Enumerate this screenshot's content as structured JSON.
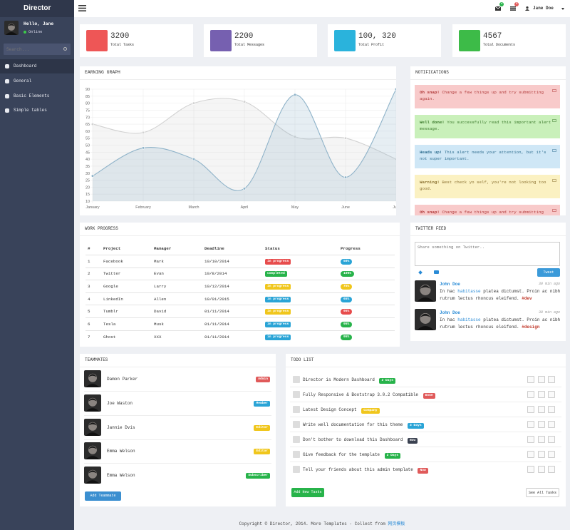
{
  "header": {
    "brand": "Director",
    "mail_count": "4",
    "task_count": "3",
    "user": "Jane Doe"
  },
  "sidebar": {
    "greeting": "Hello, Jane",
    "status": "Online",
    "search_placeholder": "Search...",
    "menu": [
      "Dashboard",
      "General",
      "Basic Elements",
      "Simple tables"
    ]
  },
  "stats": [
    {
      "value": "3200",
      "label": "Total Tasks",
      "color": "#ee5656"
    },
    {
      "value": "2200",
      "label": "Total Messages",
      "color": "#7660b0"
    },
    {
      "value": "100, 320",
      "label": "Total Profit",
      "color": "#2ab3dc"
    },
    {
      "value": "4567",
      "label": "Total Documents",
      "color": "#3dbb48"
    }
  ],
  "chart_data": {
    "type": "area",
    "title": "EARNING GRAPH",
    "categories": [
      "January",
      "February",
      "March",
      "April",
      "May",
      "June",
      "July"
    ],
    "series": [
      {
        "color": "#d2d2d2",
        "values": [
          65,
          59,
          80,
          81,
          56,
          55,
          40
        ]
      },
      {
        "color": "#8fb3c9",
        "values": [
          28,
          48,
          40,
          19,
          86,
          27,
          90
        ]
      }
    ],
    "ylim": [
      10,
      90
    ],
    "yticks": [
      10,
      15,
      20,
      25,
      30,
      35,
      40,
      45,
      50,
      55,
      60,
      65,
      70,
      75,
      80,
      85,
      90
    ],
    "grid": true,
    "smooth": true
  },
  "notifications": {
    "title": "NOTIFICATIONS",
    "alerts": [
      {
        "strong": "Oh snap!",
        "text": "Change a few things up and try submitting again."
      },
      {
        "strong": "Well done!",
        "text": "You successfully read this important alert message."
      },
      {
        "strong": "Heads up!",
        "text": "This alert needs your attention, but it's not super important."
      },
      {
        "strong": "Warning!",
        "text": "Best check yo self, you're not looking too good."
      },
      {
        "strong": "Oh snap!",
        "text": "Change a few things up and try submitting again."
      }
    ]
  },
  "work_progress": {
    "title": "WORK PROGRESS",
    "columns": [
      "#",
      "Project",
      "Manager",
      "Deadline",
      "Status",
      "Progress"
    ],
    "rows": [
      [
        "1",
        "Facebook",
        "Mark",
        "10/10/2014",
        "in progress",
        "50%"
      ],
      [
        "2",
        "Twitter",
        "Evan",
        "10/8/2014",
        "completed",
        "100%"
      ],
      [
        "3",
        "Google",
        "Larry",
        "10/12/2014",
        "in progress",
        "75%"
      ],
      [
        "4",
        "LinkedIn",
        "Allen",
        "10/01/2015",
        "in progress",
        "65%"
      ],
      [
        "5",
        "Tumblr",
        "David",
        "01/11/2014",
        "in progress",
        "95%"
      ],
      [
        "6",
        "Tesla",
        "Musk",
        "01/11/2014",
        "in progress",
        "95%"
      ],
      [
        "7",
        "Ghost",
        "XXX",
        "01/11/2014",
        "in progress",
        "95%"
      ]
    ],
    "status_colors": [
      "#e74c4c",
      "#27b34a",
      "#f0c61c",
      "#2aa4d6",
      "#f0c61c",
      "#2aa4d6",
      "#2aa4d6"
    ],
    "progress_colors": [
      "#2aa4d6",
      "#27b34a",
      "#f0c61c",
      "#2aa4d6",
      "#e74c4c",
      "#27b34a",
      "#27b34a"
    ]
  },
  "twitter": {
    "title": "TWITTER FEED",
    "placeholder": "Share something on Twitter..",
    "button": "Tweet",
    "tweets": [
      {
        "name": "John Doe",
        "time": "30 min ago",
        "before": "In hac ",
        "link": "habitasse",
        "after": " platea dictumst. Proin ac nibh rutrum lectus rhoncus eleifend. ",
        "tag": "#dev"
      },
      {
        "name": "John Doe",
        "time": "30 min ago",
        "before": "In hac ",
        "link": "habitasse",
        "after": " platea dictumst. Proin ac nibh rutrum lectus rhoncus eleifend. ",
        "tag": "#design"
      }
    ]
  },
  "teammates": {
    "title": "TEAMMATES",
    "button": "Add Teammate",
    "members": [
      {
        "name": "Damon Parker",
        "role": "Admin",
        "color": "#e05a5a"
      },
      {
        "name": "Joe Waston",
        "role": "Member",
        "color": "#2aa4d6"
      },
      {
        "name": "Jannie Dvis",
        "role": "Editor",
        "color": "#f0c61c"
      },
      {
        "name": "Emma Welson",
        "role": "Editor",
        "color": "#f0c61c"
      },
      {
        "name": "Emma Welson",
        "role": "Subscriber",
        "color": "#27b34a"
      }
    ]
  },
  "todo": {
    "title": "TODO LIST",
    "add_button": "Add New Tasks",
    "all_button": "See All Tasks",
    "items": [
      {
        "text": "Director is Modern Dashboard",
        "tag": "2 Days",
        "color": "#27b34a"
      },
      {
        "text": "Fully Responsive & Bootstrap 3.0.2 Compatible",
        "tag": "Done",
        "color": "#e05a5a"
      },
      {
        "text": "Latest Design Concept",
        "tag": "Company",
        "color": "#f0c61c"
      },
      {
        "text": "Write well documentation for this theme",
        "tag": "3 Days",
        "color": "#2aa4d6"
      },
      {
        "text": "Don't bother to download this Dashboard",
        "tag": "Now",
        "color": "#3a4150"
      },
      {
        "text": "Give feedback for the template",
        "tag": "2 Days",
        "color": "#27b34a"
      },
      {
        "text": "Tell your friends about this admin template",
        "tag": "Now",
        "color": "#e05a5a"
      }
    ]
  },
  "footer": {
    "text": "Copyright © Director, 2014. More Templates - Collect from ",
    "link": "网页模板"
  }
}
